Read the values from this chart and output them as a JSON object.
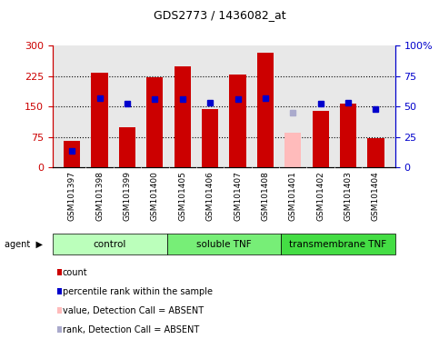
{
  "title": "GDS2773 / 1436082_at",
  "samples": [
    "GSM101397",
    "GSM101398",
    "GSM101399",
    "GSM101400",
    "GSM101405",
    "GSM101406",
    "GSM101407",
    "GSM101408",
    "GSM101401",
    "GSM101402",
    "GSM101403",
    "GSM101404"
  ],
  "bar_heights": [
    65,
    232,
    100,
    222,
    248,
    143,
    228,
    283,
    85,
    138,
    157,
    72
  ],
  "bar_colors": [
    "#cc0000",
    "#cc0000",
    "#cc0000",
    "#cc0000",
    "#cc0000",
    "#cc0000",
    "#cc0000",
    "#cc0000",
    "#ffbbbb",
    "#cc0000",
    "#cc0000",
    "#cc0000"
  ],
  "percentile_ranks_pct": [
    14,
    57,
    52,
    56,
    56,
    53,
    56,
    57,
    45,
    52,
    53,
    48
  ],
  "percentile_absent": [
    false,
    false,
    false,
    false,
    false,
    false,
    false,
    false,
    true,
    false,
    false,
    false
  ],
  "ylim_left": [
    0,
    300
  ],
  "ylim_right": [
    0,
    100
  ],
  "yticks_left": [
    0,
    75,
    150,
    225,
    300
  ],
  "yticks_right": [
    0,
    25,
    50,
    75,
    100
  ],
  "groups": [
    {
      "label": "control",
      "start": 0,
      "end": 3,
      "color": "#bbffbb"
    },
    {
      "label": "soluble TNF",
      "start": 4,
      "end": 7,
      "color": "#77ee77"
    },
    {
      "label": "transmembrane TNF",
      "start": 8,
      "end": 11,
      "color": "#44dd44"
    }
  ],
  "legend_labels": [
    "count",
    "percentile rank within the sample",
    "value, Detection Call = ABSENT",
    "rank, Detection Call = ABSENT"
  ],
  "legend_colors": [
    "#cc0000",
    "#0000cc",
    "#ffbbbb",
    "#aaaacc"
  ],
  "bar_width": 0.6,
  "plot_bg_color": "#e8e8e8",
  "xtick_bg_color": "#d8d8d8"
}
